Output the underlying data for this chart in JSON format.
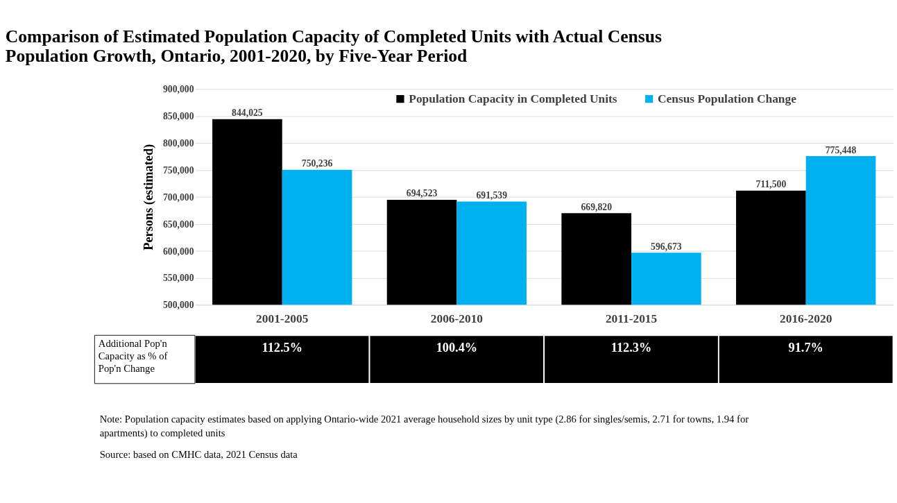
{
  "chart_data": {
    "type": "bar",
    "title": "Comparison of Estimated Population Capacity of Completed Units with Actual Census Population Growth, Ontario, 2001-2020, by Five-Year Period",
    "ylabel": "Persons (estimated)",
    "categories": [
      "2001-2005",
      "2006-2010",
      "2011-2015",
      "2016-2020"
    ],
    "series": [
      {
        "name": "Population Capacity in Completed Units",
        "color": "#000000",
        "values": [
          844025,
          694523,
          669820,
          711500
        ]
      },
      {
        "name": "Census Population Change",
        "color": "#00b0f0",
        "values": [
          750236,
          691539,
          596673,
          775448
        ]
      }
    ],
    "ylim": [
      500000,
      900000
    ],
    "yticks": [
      {
        "value": 500000,
        "label": "500,000"
      },
      {
        "value": 550000,
        "label": "550,000"
      },
      {
        "value": 600000,
        "label": "600,000"
      },
      {
        "value": 650000,
        "label": "650,000"
      },
      {
        "value": 700000,
        "label": "700,000"
      },
      {
        "value": 750000,
        "label": "750,000"
      },
      {
        "value": 800000,
        "label": "800,000"
      },
      {
        "value": 850000,
        "label": "850,000"
      },
      {
        "value": 900000,
        "label": "900,000"
      }
    ],
    "value_labels": [
      [
        "844,025",
        "694,523",
        "669,820",
        "711,500"
      ],
      [
        "750,236",
        "691,539",
        "596,673",
        "775,448"
      ]
    ],
    "grid": "y",
    "legend": "top right",
    "annotations": [
      "Additional Pop'n Capacity as % of Pop'n Change",
      {
        "text": "112.5%",
        "x": "2001-2005"
      },
      {
        "text": "100.4%",
        "x": "2006-2010"
      },
      {
        "text": "112.3%",
        "x": "2011-2015"
      },
      {
        "text": "91.7%",
        "x": "2016-2020"
      },
      "Note: Population capacity estimates based on applying Ontario-wide 2021 average household sizes by unit type (2.86 for singles/semis, 2.71 for towns, 1.94 for apartments) to completed units",
      "Source: based on CMHC data, 2021 Census data"
    ]
  }
}
